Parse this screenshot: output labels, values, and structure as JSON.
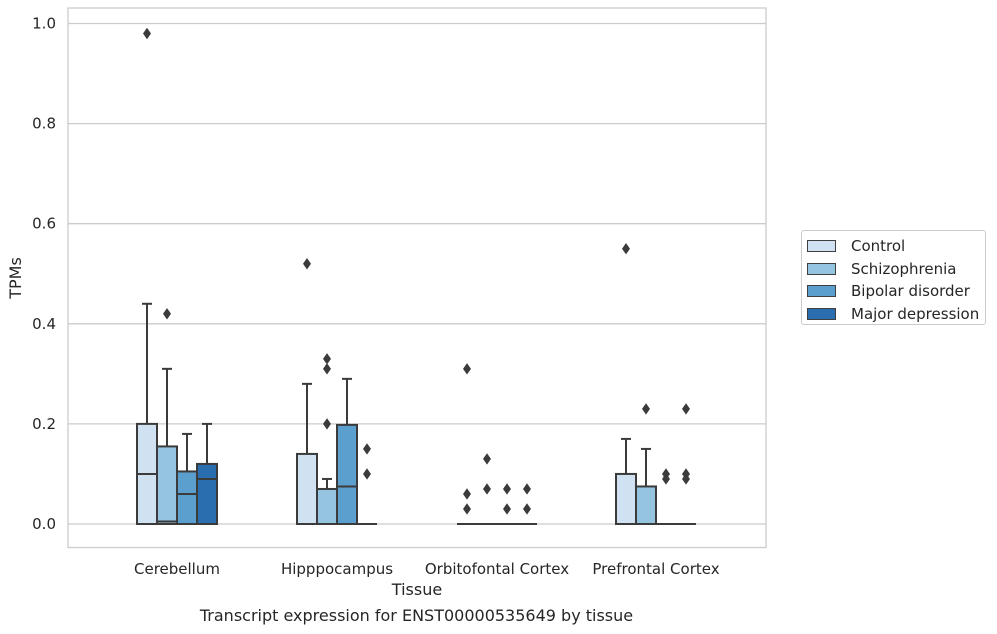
{
  "chart_data": {
    "type": "box",
    "xlabel": "Tissue",
    "ylabel": "TPMs",
    "ylim": [
      -0.045,
      1.03
    ],
    "yticks": [
      0.0,
      0.2,
      0.4,
      0.6,
      0.8,
      1.0
    ],
    "ytick_labels": [
      "0.0",
      "0.2",
      "0.4",
      "0.6",
      "0.8",
      "1.0"
    ],
    "grid": true,
    "legend_position": "right",
    "categories": [
      "Cerebellum",
      "Hipppocampus",
      "Orbitofontal Cortex",
      "Prefrontal Cortex"
    ],
    "series": [
      {
        "name": "Control",
        "color": "#d0e1f2",
        "boxes": [
          {
            "q1": 0,
            "median": 0.1,
            "q3": 0.2,
            "whisker_low": 0,
            "whisker_high": 0.44,
            "outliers": [
              0.98
            ]
          },
          {
            "q1": 0,
            "median": 0,
            "q3": 0.14,
            "whisker_low": 0,
            "whisker_high": 0.28,
            "outliers": [
              0.52
            ]
          },
          {
            "q1": 0,
            "median": 0,
            "q3": 0,
            "whisker_low": 0,
            "whisker_high": 0,
            "outliers": [
              0.31,
              0.06,
              0.03
            ]
          },
          {
            "q1": 0,
            "median": 0,
            "q3": 0.1,
            "whisker_low": 0,
            "whisker_high": 0.17,
            "outliers": [
              0.55
            ]
          }
        ]
      },
      {
        "name": "Schizophrenia",
        "color": "#94c4df",
        "boxes": [
          {
            "q1": 0,
            "median": 0.005,
            "q3": 0.155,
            "whisker_low": 0,
            "whisker_high": 0.31,
            "outliers": [
              0.42
            ]
          },
          {
            "q1": 0,
            "median": 0.07,
            "q3": 0.07,
            "whisker_low": 0,
            "whisker_high": 0.09,
            "outliers": [
              0.33,
              0.31,
              0.2
            ]
          },
          {
            "q1": 0,
            "median": 0,
            "q3": 0,
            "whisker_low": 0,
            "whisker_high": 0,
            "outliers": [
              0.13,
              0.07
            ]
          },
          {
            "q1": 0,
            "median": 0,
            "q3": 0.075,
            "whisker_low": 0,
            "whisker_high": 0.15,
            "outliers": [
              0.23
            ]
          }
        ]
      },
      {
        "name": "Bipolar disorder",
        "color": "#5a9fcd",
        "boxes": [
          {
            "q1": 0,
            "median": 0.06,
            "q3": 0.105,
            "whisker_low": 0,
            "whisker_high": 0.18,
            "outliers": []
          },
          {
            "q1": 0,
            "median": 0.075,
            "q3": 0.198,
            "whisker_low": 0,
            "whisker_high": 0.29,
            "outliers": []
          },
          {
            "q1": 0,
            "median": 0,
            "q3": 0,
            "whisker_low": 0,
            "whisker_high": 0,
            "outliers": [
              0.07,
              0.03
            ]
          },
          {
            "q1": 0,
            "median": 0,
            "q3": 0,
            "whisker_low": 0,
            "whisker_high": 0,
            "outliers": [
              0.1,
              0.09
            ]
          }
        ]
      },
      {
        "name": "Major depression",
        "color": "#2a6eb0",
        "boxes": [
          {
            "q1": 0,
            "median": 0.09,
            "q3": 0.12,
            "whisker_low": 0,
            "whisker_high": 0.2,
            "outliers": []
          },
          {
            "q1": 0,
            "median": 0,
            "q3": 0,
            "whisker_low": 0,
            "whisker_high": 0,
            "outliers": [
              0.15,
              0.1
            ]
          },
          {
            "q1": 0,
            "median": 0,
            "q3": 0,
            "whisker_low": 0,
            "whisker_high": 0,
            "outliers": [
              0.07,
              0.03
            ]
          },
          {
            "q1": 0,
            "median": 0,
            "q3": 0,
            "whisker_low": 0,
            "whisker_high": 0,
            "outliers": [
              0.23,
              0.1,
              0.09
            ]
          }
        ]
      }
    ]
  },
  "caption": "Transcript expression for ENST00000535649 by tissue"
}
